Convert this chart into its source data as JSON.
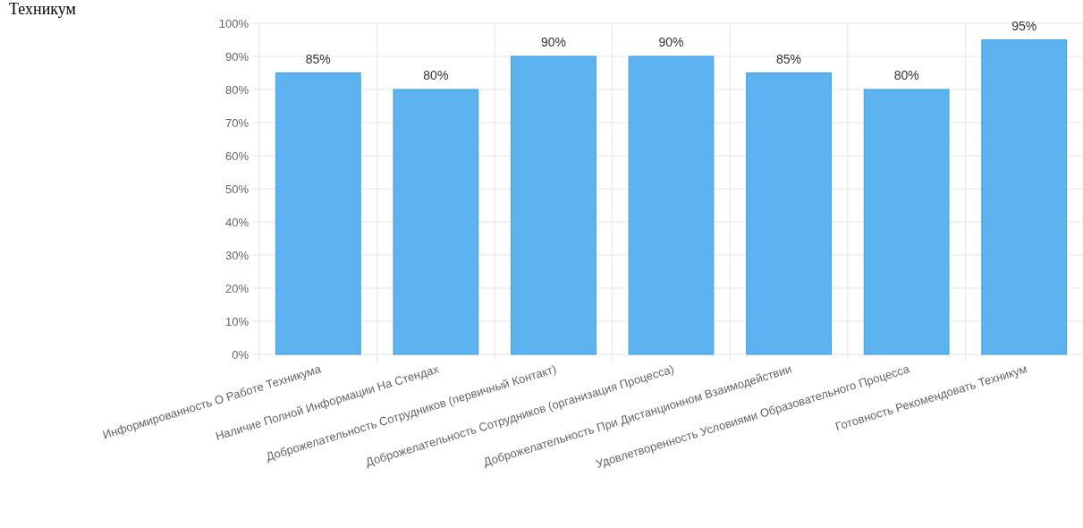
{
  "chart_data": {
    "type": "bar",
    "categories": [
      "Информированность О Работе Техникума",
      "Наличие Полной Информации На Стендах",
      "Доброжелательность Сотрудников (первичный Контакт)",
      "Доброжелательность Сотрудников (организация Процесса)",
      "Доброжелательность При Дистанционном Взаимодействии",
      "Удовлетворенность Условиями Образовательного Процесса",
      "Готовность Рекомендовать Техникум"
    ],
    "values": [
      85,
      80,
      90,
      90,
      85,
      80,
      95
    ],
    "value_labels": [
      "85%",
      "80%",
      "90%",
      "90%",
      "85%",
      "80%",
      "95%"
    ],
    "color": "#5db3ef",
    "ylim": [
      0,
      100
    ],
    "yticks": [
      {
        "value": 0,
        "label": "0%"
      },
      {
        "value": 10,
        "label": "10%"
      },
      {
        "value": 20,
        "label": "20%"
      },
      {
        "value": 30,
        "label": "30%"
      },
      {
        "value": 40,
        "label": "40%"
      },
      {
        "value": 50,
        "label": "50%"
      },
      {
        "value": 60,
        "label": "60%"
      },
      {
        "value": 70,
        "label": "70%"
      },
      {
        "value": 80,
        "label": "80%"
      },
      {
        "value": 90,
        "label": "90%"
      },
      {
        "value": 100,
        "label": "100%"
      }
    ],
    "grid": true,
    "annotations": [
      "Техникум"
    ]
  }
}
